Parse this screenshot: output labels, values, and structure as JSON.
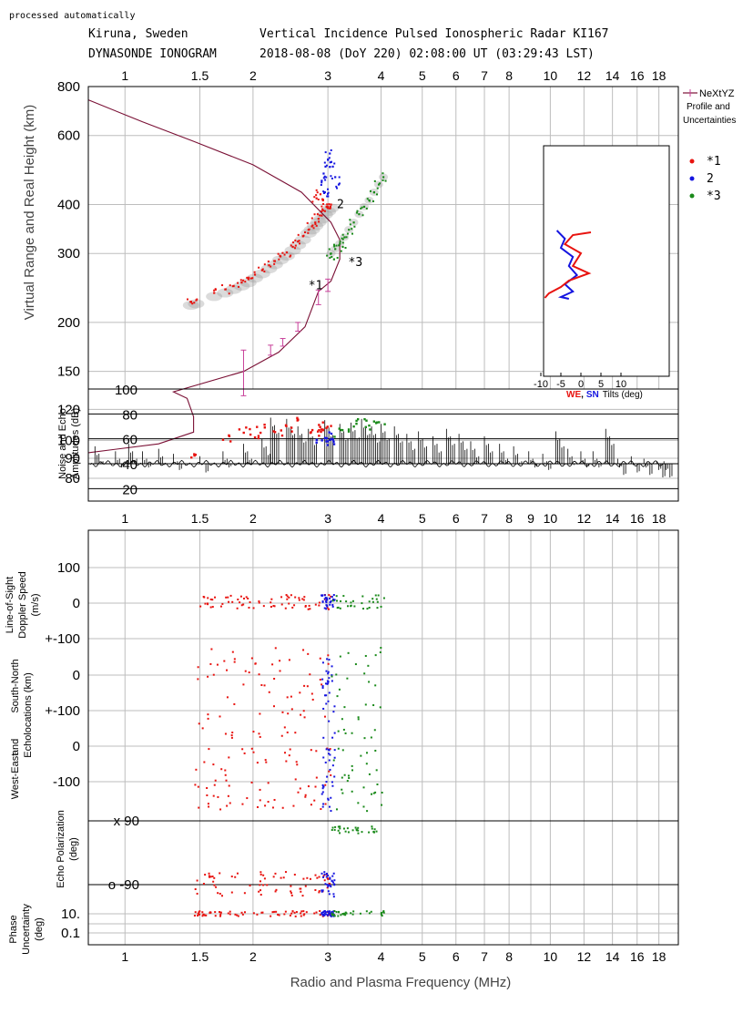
{
  "header": {
    "note": "processed automatically",
    "line1_left": "Kiruna, Sweden",
    "line1_right": "Vertical Incidence Pulsed Ionospheric Radar KI167",
    "line2_left": "DYNASONDE IONOGRAM",
    "line2_right": "2018-08-08 (DoY 220)   02:08:00 UT (03:29:43 LST)"
  },
  "colors": {
    "red": "#e8130f",
    "blue": "#1515e0",
    "green": "#1a8a1a",
    "profile": "#7a1035",
    "errorbar": "#c8409a",
    "grid": "#bdbdbd"
  },
  "legend": {
    "profile_lines": [
      "NeXtYZ",
      "Profile and",
      "Uncertainties"
    ],
    "traces": [
      {
        "symbol": "*1",
        "color": "red"
      },
      {
        "symbol": "2",
        "color": "blue"
      },
      {
        "symbol": "*3",
        "color": "green"
      }
    ]
  },
  "tilts": {
    "tick_labels": [
      "-10",
      "-5",
      "0",
      "5",
      "10"
    ],
    "label_we": "WE",
    "label_comma": ",",
    "label_sn": "SN",
    "label_rest": "Tilts (deg)"
  },
  "chart_data": [
    {
      "type": "line",
      "panel": "ionogram",
      "xlabel": "Radio and Plasma Frequency (MHz)",
      "ylabel": "Virtual Range and Real Height (km)",
      "x_scale": "log",
      "y_scale": "log",
      "xlim": [
        0.82,
        20
      ],
      "ylim": [
        70,
        800
      ],
      "x_ticks": [
        1,
        1.5,
        2,
        3,
        4,
        5,
        6,
        7,
        8,
        10,
        12,
        14,
        16,
        18
      ],
      "x_tick_labels": [
        "1",
        "1.5",
        "2",
        "3",
        "4",
        "5",
        "6",
        "7",
        "8",
        "10",
        "12",
        "14",
        "16",
        "18"
      ],
      "y_ticks": [
        80,
        90,
        100,
        120,
        150,
        200,
        300,
        400,
        600,
        800
      ],
      "y_tick_labels": [
        "80",
        "90",
        "100",
        "120",
        "150",
        "200",
        "300",
        "400",
        "600",
        "800"
      ],
      "grid": true,
      "trace_labels": [
        {
          "text": "2",
          "x": 3.15,
          "y": 400
        },
        {
          "text": "*3",
          "x": 3.35,
          "y": 285
        },
        {
          "text": "*1",
          "x": 2.7,
          "y": 248
        }
      ],
      "profile": {
        "x": [
          0.82,
          1.2,
          1.45,
          1.45,
          1.4,
          1.3,
          1.9,
          2.3,
          2.65,
          2.85,
          3.05,
          3.2,
          3.2,
          3.05,
          2.6,
          2.0,
          1.45,
          1.1,
          0.82
        ],
        "y": [
          93,
          98,
          105,
          115,
          128,
          133,
          150,
          168,
          195,
          240,
          255,
          290,
          325,
          360,
          430,
          505,
          580,
          650,
          740
        ]
      },
      "error_bars": [
        {
          "x": 1.9,
          "y": 150,
          "ylow": 130,
          "yhigh": 170
        },
        {
          "x": 2.2,
          "y": 170,
          "ylow": 165,
          "yhigh": 175
        },
        {
          "x": 2.35,
          "y": 178,
          "ylow": 174,
          "yhigh": 182
        },
        {
          "x": 2.55,
          "y": 195,
          "ylow": 190,
          "yhigh": 200
        },
        {
          "x": 2.85,
          "y": 230,
          "ylow": 222,
          "yhigh": 242
        },
        {
          "x": 3.0,
          "y": 248,
          "ylow": 240,
          "yhigh": 258
        }
      ],
      "series": [
        {
          "name": "*1",
          "color": "red",
          "x": [
            1.43,
            1.47,
            1.62,
            1.72,
            1.8,
            1.88,
            1.95,
            2.02,
            2.1,
            2.18,
            2.25,
            2.32,
            2.4,
            2.48,
            2.55,
            2.62,
            2.7,
            2.75,
            2.8,
            2.85,
            2.9,
            2.95,
            3.0,
            3.05,
            2.82,
            2.88,
            2.92,
            2.98
          ],
          "y": [
            226,
            228,
            238,
            243,
            248,
            253,
            258,
            265,
            272,
            280,
            287,
            295,
            302,
            312,
            322,
            332,
            345,
            352,
            360,
            368,
            375,
            385,
            392,
            400,
            415,
            425,
            410,
            395
          ]
        },
        {
          "name": "2",
          "color": "blue",
          "x": [
            2.9,
            2.93,
            2.96,
            3.0,
            3.03,
            3.08,
            3.12,
            3.18,
            2.95,
            3.0
          ],
          "y": [
            460,
            480,
            500,
            520,
            540,
            500,
            470,
            450,
            430,
            420
          ]
        },
        {
          "name": "*3",
          "color": "green",
          "x": [
            3.05,
            3.12,
            3.2,
            3.28,
            3.36,
            3.45,
            3.55,
            3.65,
            3.75,
            3.85,
            3.95,
            4.05,
            3.1,
            3.25
          ],
          "y": [
            300,
            308,
            318,
            330,
            345,
            360,
            378,
            395,
            410,
            430,
            450,
            470,
            290,
            312
          ]
        }
      ]
    },
    {
      "type": "line",
      "panel": "amplitudes",
      "ylabel": "Noise and Echo Amplitudes (dB)",
      "x_scale": "log",
      "xlim": [
        0.82,
        20
      ],
      "ylim": [
        10,
        100
      ],
      "y_ticks": [
        20,
        40,
        60,
        80,
        100
      ],
      "y_tick_labels": [
        "20",
        "40",
        "60",
        "80",
        "100"
      ],
      "noise_floor_db": 40,
      "spikes": {
        "x": [
          0.85,
          0.95,
          1.02,
          1.1,
          1.2,
          1.3,
          1.5,
          1.7,
          1.9,
          2.1,
          2.2,
          2.4,
          2.55,
          2.7,
          2.95,
          3.2,
          3.4,
          3.6,
          3.8,
          4.0,
          4.3,
          4.6,
          4.9,
          5.3,
          5.7,
          6.1,
          6.5,
          7.0,
          7.6,
          8.2,
          8.9,
          9.6,
          10.3,
          11.0,
          11.8,
          12.6,
          13.5,
          14.4,
          15.5,
          16.6,
          17.8,
          18.5
        ],
        "y": [
          54,
          50,
          56,
          50,
          52,
          48,
          46,
          50,
          56,
          60,
          77,
          76,
          70,
          68,
          75,
          72,
          73,
          76,
          70,
          72,
          70,
          64,
          66,
          62,
          68,
          64,
          58,
          62,
          56,
          54,
          50,
          48,
          66,
          52,
          50,
          50,
          68,
          44,
          46,
          44,
          42,
          42
        ]
      },
      "red_marks": {
        "x": [
          1.45,
          1.75,
          1.9,
          2.0,
          2.1,
          2.3,
          2.45,
          2.6,
          2.75,
          2.85,
          2.92,
          2.98
        ],
        "y": [
          46,
          60,
          67,
          65,
          69,
          65,
          70,
          75,
          68,
          66,
          72,
          68
        ]
      },
      "blue_marks": {
        "x": [
          2.9,
          2.95,
          3.0,
          3.05
        ],
        "y": [
          60,
          63,
          58,
          61
        ]
      },
      "green_marks": {
        "x": [
          3.2,
          3.4,
          3.6,
          3.8,
          4.0
        ],
        "y": [
          66,
          70,
          73,
          72,
          74
        ]
      }
    },
    {
      "type": "scatter",
      "panel": "echolocation",
      "x_scale": "log",
      "xlim": [
        0.82,
        20
      ],
      "x_ticks": [
        1,
        1.5,
        2,
        3,
        4,
        5,
        6,
        7,
        8,
        9,
        10,
        12,
        14,
        16,
        18
      ],
      "x_tick_labels": [
        "1",
        "1.5",
        "2",
        "3",
        "4",
        "5",
        "6",
        "7",
        "8",
        "9",
        "10",
        "12",
        "14",
        "16",
        "18"
      ],
      "sub_panels": [
        {
          "ylabel": "Line-of-Sight Doppler Speed (m/s)",
          "tick_labels": [
            "100",
            "0",
            "+-100"
          ]
        },
        {
          "ylabel": "South-North Echolocations (km)",
          "tick_labels": [
            "0",
            "+-100"
          ]
        },
        {
          "ylabel": "West-East and Echolocations (km)",
          "tick_labels": [
            "0",
            "-100"
          ]
        },
        {
          "ylabel": "Echo Polarization (deg)",
          "tick_labels": [
            "x 90",
            "o -90"
          ]
        },
        {
          "ylabel": "Phase Uncertainty (deg)",
          "tick_labels": [
            "10.",
            "0.1"
          ]
        }
      ],
      "x_label": "Radio and Plasma Frequency (MHz)"
    }
  ],
  "axis_labels": {
    "ionogram_y": "Virtual Range and Real Height (km)",
    "amp_y_1": "Noise and Echo",
    "amp_y_2": "Amplitudes (dB)",
    "doppler_1": "Line-of-Sight",
    "doppler_2": "Doppler Speed",
    "doppler_3": "(m/s)",
    "sn_1": "South-North",
    "sn_2": "Echolocations (km)",
    "we_1": "West-East",
    "we_2": "and",
    "pol_1": "Echo Polarization",
    "pol_2": "(deg)",
    "phase_1": "Phase",
    "phase_2": "Uncertainty",
    "phase_3": "(deg)",
    "x": "Radio and Plasma Frequency (MHz)"
  }
}
